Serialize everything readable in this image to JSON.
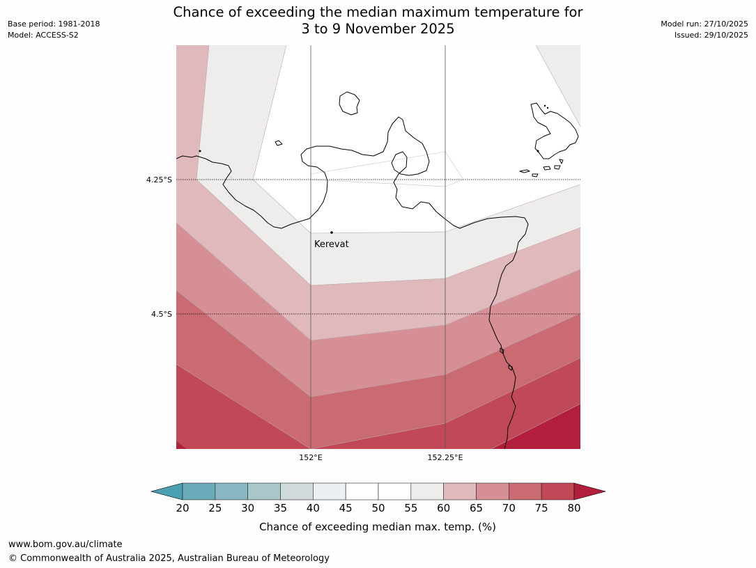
{
  "title": {
    "line1": "Chance of exceeding the median maximum temperature for",
    "line2": "3 to 9 November 2025"
  },
  "meta_left": {
    "base_period": "Base period: 1981-2018",
    "model": "Model: ACCESS-S2"
  },
  "meta_right": {
    "model_run": "Model run: 27/10/2025",
    "issued": "Issued: 29/10/2025"
  },
  "map": {
    "place_label": "Kerevat",
    "lat_labels": [
      "4.25°S",
      "4.5°S"
    ],
    "lon_labels": [
      "152°E",
      "152.25°E"
    ]
  },
  "colorbar": {
    "ticks": [
      "20",
      "25",
      "30",
      "35",
      "40",
      "45",
      "50",
      "55",
      "60",
      "65",
      "70",
      "75",
      "80"
    ],
    "label": "Chance of exceeding median max. temp. (%)",
    "colors": [
      "#4a9fb0",
      "#6aaab9",
      "#8ab6c3",
      "#a9c6cb",
      "#d1dadb",
      "#ebf1f2",
      "#ffffff",
      "#ffffff",
      "#eeedeb",
      "#e0b9bd",
      "#d58f95",
      "#ca6a72",
      "#c14856",
      "#b11f3c"
    ]
  },
  "footer": {
    "url": "www.bom.gov.au/climate",
    "copyright": "© Commonwealth of Australia 2025, Australian Bureau of Meteorology"
  }
}
